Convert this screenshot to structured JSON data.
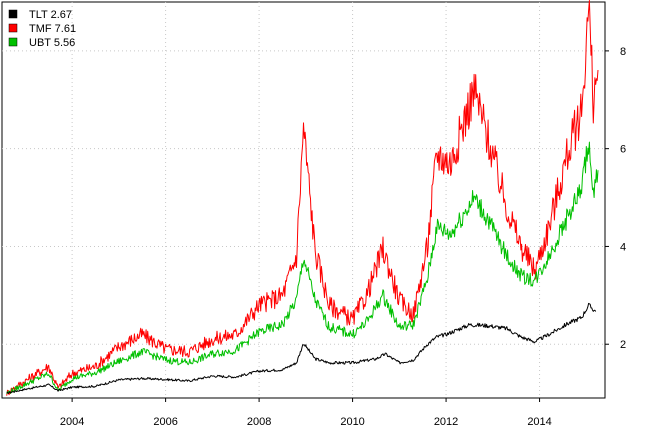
{
  "chart_data": {
    "type": "line",
    "title": "",
    "xlabel": "",
    "ylabel": "",
    "x_ticks": [
      "2004",
      "2006",
      "2008",
      "2010",
      "2012",
      "2014"
    ],
    "y_ticks": [
      "2",
      "4",
      "6",
      "8"
    ],
    "xlim": [
      2002.5,
      2015.4
    ],
    "ylim": [
      0.9,
      9.0
    ],
    "grid": true,
    "legend_position": "top-left",
    "series": [
      {
        "name": "TLT 2.67",
        "color": "#000000",
        "x": [
          2002.6,
          2003.0,
          2003.5,
          2003.7,
          2004.0,
          2004.5,
          2005.0,
          2005.5,
          2006.0,
          2006.5,
          2007.0,
          2007.5,
          2008.0,
          2008.5,
          2008.8,
          2008.95,
          2009.2,
          2009.5,
          2010.0,
          2010.5,
          2010.7,
          2011.0,
          2011.3,
          2011.6,
          2011.8,
          2012.0,
          2012.5,
          2012.9,
          2013.3,
          2013.6,
          2013.9,
          2014.2,
          2014.6,
          2014.9,
          2015.05,
          2015.2
        ],
        "values": [
          1.0,
          1.08,
          1.17,
          1.05,
          1.12,
          1.14,
          1.27,
          1.3,
          1.28,
          1.25,
          1.35,
          1.33,
          1.45,
          1.48,
          1.62,
          2.02,
          1.7,
          1.62,
          1.62,
          1.7,
          1.8,
          1.62,
          1.68,
          2.0,
          2.15,
          2.2,
          2.4,
          2.38,
          2.32,
          2.15,
          2.05,
          2.2,
          2.42,
          2.55,
          2.8,
          2.67
        ]
      },
      {
        "name": "TMF 7.61",
        "color": "#ff0000",
        "x": [
          2002.6,
          2003.0,
          2003.5,
          2003.7,
          2004.0,
          2004.5,
          2005.0,
          2005.5,
          2006.0,
          2006.5,
          2007.0,
          2007.5,
          2008.0,
          2008.5,
          2008.8,
          2008.95,
          2009.2,
          2009.5,
          2010.0,
          2010.3,
          2010.65,
          2011.0,
          2011.3,
          2011.6,
          2011.8,
          2012.1,
          2012.6,
          2012.9,
          2013.3,
          2013.6,
          2013.9,
          2014.2,
          2014.6,
          2014.9,
          2015.05,
          2015.15,
          2015.25
        ],
        "values": [
          1.0,
          1.25,
          1.55,
          1.1,
          1.4,
          1.55,
          1.95,
          2.2,
          1.9,
          1.85,
          2.1,
          2.2,
          2.8,
          3.0,
          3.8,
          6.45,
          3.9,
          2.8,
          2.5,
          3.0,
          3.95,
          2.9,
          2.6,
          4.0,
          5.9,
          5.7,
          7.2,
          6.2,
          4.8,
          4.0,
          3.5,
          4.4,
          5.9,
          6.8,
          8.9,
          7.0,
          7.61
        ]
      },
      {
        "name": "UBT 5.56",
        "color": "#00c000",
        "x": [
          2002.6,
          2003.0,
          2003.5,
          2003.7,
          2004.0,
          2004.5,
          2005.0,
          2005.5,
          2006.0,
          2006.5,
          2007.0,
          2007.5,
          2008.0,
          2008.5,
          2008.8,
          2008.95,
          2009.2,
          2009.5,
          2010.0,
          2010.3,
          2010.65,
          2011.0,
          2011.3,
          2011.6,
          2011.8,
          2012.1,
          2012.6,
          2012.9,
          2013.3,
          2013.6,
          2013.9,
          2014.2,
          2014.6,
          2014.9,
          2015.05,
          2015.15,
          2015.25
        ],
        "values": [
          1.0,
          1.18,
          1.4,
          1.05,
          1.3,
          1.42,
          1.65,
          1.85,
          1.68,
          1.62,
          1.8,
          1.88,
          2.25,
          2.4,
          2.9,
          3.78,
          2.9,
          2.35,
          2.2,
          2.45,
          3.0,
          2.35,
          2.4,
          3.35,
          4.4,
          4.25,
          5.0,
          4.55,
          3.8,
          3.4,
          3.3,
          3.8,
          4.6,
          5.2,
          6.15,
          5.0,
          5.56
        ]
      }
    ]
  }
}
